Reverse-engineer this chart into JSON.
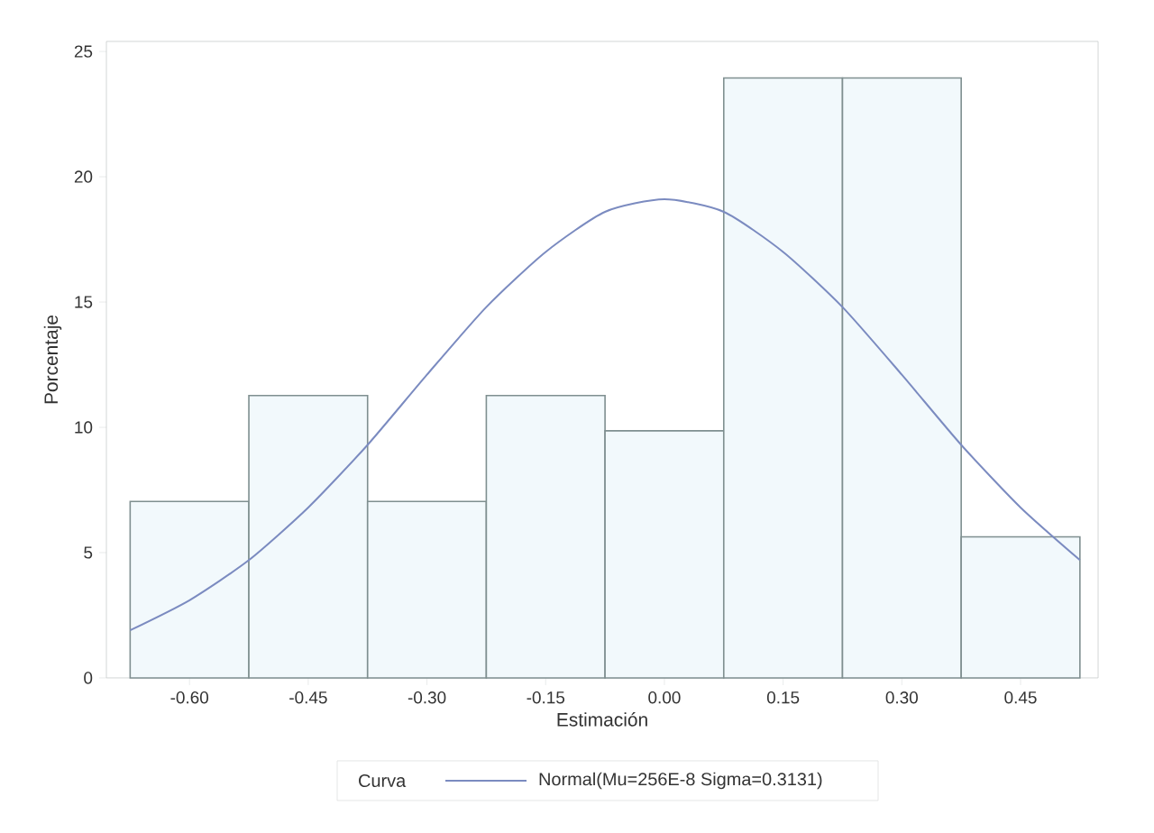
{
  "chart_data": {
    "type": "histogram",
    "xlabel": "Estimación",
    "ylabel": "Porcentaje",
    "legend_title": "Curva",
    "bins": [
      -0.675,
      -0.525,
      -0.375,
      -0.225,
      -0.075,
      0.075,
      0.225,
      0.375,
      0.525
    ],
    "values": [
      7.04,
      11.27,
      7.04,
      11.27,
      9.86,
      23.94,
      23.94,
      5.63
    ],
    "color": "#f2f9fc",
    "series": [
      {
        "type": "line",
        "name": "Normal(Mu=256E-8 Sigma=0.3131)",
        "color": "#7b8bc0",
        "x": [
          -0.675,
          -0.6,
          -0.525,
          -0.45,
          -0.375,
          -0.3,
          -0.225,
          -0.15,
          -0.075,
          0,
          0.075,
          0.15,
          0.225,
          0.3,
          0.375,
          0.45,
          0.525
        ],
        "values": [
          1.9,
          3.1,
          4.7,
          6.8,
          9.3,
          12.1,
          14.8,
          17.0,
          18.6,
          19.1,
          18.6,
          17.0,
          14.8,
          12.1,
          9.3,
          6.8,
          4.7
        ]
      }
    ],
    "xlim": [
      -0.705,
      0.548
    ],
    "ylim": [
      0,
      25.4
    ],
    "xticks": [
      {
        "value": -0.6,
        "label": "-0.60"
      },
      {
        "value": -0.45,
        "label": "-0.45"
      },
      {
        "value": -0.3,
        "label": "-0.30"
      },
      {
        "value": -0.15,
        "label": "-0.15"
      },
      {
        "value": 0,
        "label": "0.00"
      },
      {
        "value": 0.15,
        "label": "0.15"
      },
      {
        "value": 0.3,
        "label": "0.30"
      },
      {
        "value": 0.45,
        "label": "0.45"
      }
    ],
    "yticks": [
      0,
      5,
      10,
      15,
      20,
      25
    ],
    "grid": false,
    "legend": "bottom",
    "marker": "none",
    "line_style": "solid"
  }
}
